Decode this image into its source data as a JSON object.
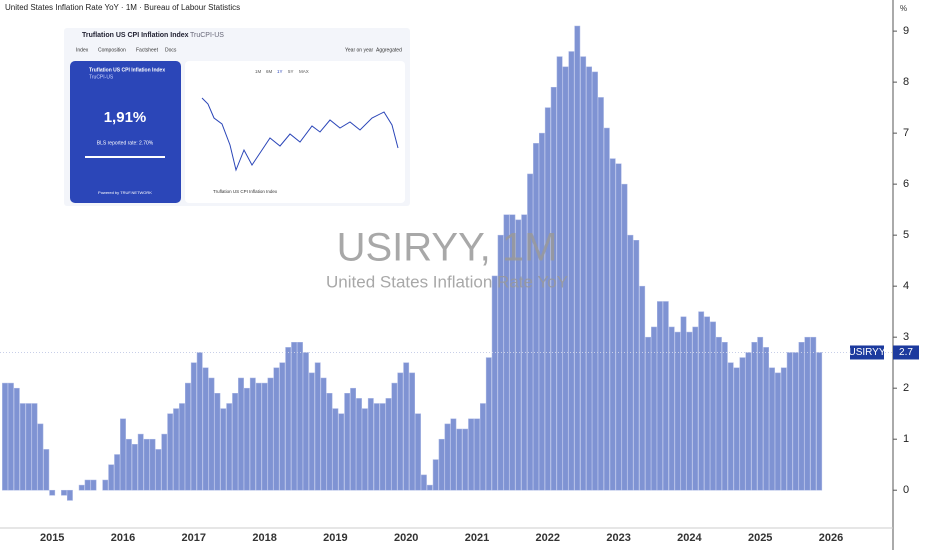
{
  "chart_data": {
    "type": "bar",
    "title": "United States Inflation Rate YoY · 1M · Bureau of Labour Statistics",
    "watermark": "USIRYY, 1M",
    "subtitle": "United States Inflation Rate YoY",
    "unit": "%",
    "color": "#7f93d3",
    "categories": [
      null,
      null,
      null,
      null,
      null,
      null,
      null,
      null,
      "2015",
      null,
      null,
      null,
      null,
      null,
      null,
      null,
      null,
      null,
      null,
      null,
      "2016",
      null,
      null,
      null,
      null,
      null,
      null,
      null,
      null,
      null,
      null,
      null,
      "2017",
      null,
      null,
      null,
      null,
      null,
      null,
      null,
      null,
      null,
      null,
      null,
      "2018",
      null,
      null,
      null,
      null,
      null,
      null,
      null,
      null,
      null,
      null,
      null,
      "2019",
      null,
      null,
      null,
      null,
      null,
      null,
      null,
      null,
      null,
      null,
      null,
      "2020",
      null,
      null,
      null,
      null,
      null,
      null,
      null,
      null,
      null,
      null,
      null,
      "2021",
      null,
      null,
      null,
      null,
      null,
      null,
      null,
      null,
      null,
      null,
      null,
      "2022",
      null,
      null,
      null,
      null,
      null,
      null,
      null,
      null,
      null,
      null,
      null,
      "2023",
      null,
      null,
      null,
      null,
      null,
      null,
      null,
      null,
      null,
      null,
      null,
      "2024",
      null,
      null,
      null,
      null,
      null,
      null,
      null,
      null,
      null,
      null,
      null,
      "2025",
      null,
      null,
      null,
      null,
      null,
      null,
      null,
      null,
      null,
      null,
      null,
      "2026"
    ],
    "values": [
      2.1,
      2.1,
      2.0,
      1.7,
      1.7,
      1.7,
      1.3,
      0.8,
      -0.1,
      0.0,
      -0.1,
      -0.2,
      0.0,
      0.1,
      0.2,
      0.2,
      0.0,
      0.2,
      0.5,
      0.7,
      1.4,
      1.0,
      0.9,
      1.1,
      1.0,
      1.0,
      0.8,
      1.1,
      1.5,
      1.6,
      1.7,
      2.1,
      2.5,
      2.7,
      2.4,
      2.2,
      1.9,
      1.6,
      1.7,
      1.9,
      2.2,
      2.0,
      2.2,
      2.1,
      2.1,
      2.2,
      2.4,
      2.5,
      2.8,
      2.9,
      2.9,
      2.7,
      2.3,
      2.5,
      2.2,
      1.9,
      1.6,
      1.5,
      1.9,
      2.0,
      1.8,
      1.6,
      1.8,
      1.7,
      1.7,
      1.8,
      2.1,
      2.3,
      2.5,
      2.3,
      1.5,
      0.3,
      0.1,
      0.6,
      1.0,
      1.3,
      1.4,
      1.2,
      1.2,
      1.4,
      1.4,
      1.7,
      2.6,
      4.2,
      5.0,
      5.4,
      5.4,
      5.3,
      5.4,
      6.2,
      6.8,
      7.0,
      7.5,
      7.9,
      8.5,
      8.3,
      8.6,
      9.1,
      8.5,
      8.3,
      8.2,
      7.7,
      7.1,
      6.5,
      6.4,
      6.0,
      5.0,
      4.9,
      4.0,
      3.0,
      3.2,
      3.7,
      3.7,
      3.2,
      3.1,
      3.4,
      3.1,
      3.2,
      3.5,
      3.4,
      3.3,
      3.0,
      2.9,
      2.5,
      2.4,
      2.6,
      2.7,
      2.9,
      3.0,
      2.8,
      2.4,
      2.3,
      2.4,
      2.7,
      2.7,
      2.9,
      3.0,
      3.0,
      2.7,
      null,
      null
    ],
    "ylim": [
      -0.78,
      9.61
    ],
    "yticks": [
      0,
      1,
      2,
      3,
      4,
      5,
      6,
      7,
      8,
      9
    ],
    "last_label": {
      "symbol": "USIRYY",
      "value": 2.7
    }
  },
  "inset": {
    "title": "Truflation US CPI Inflation Index",
    "ticker": "TruCPI-US",
    "tabs": [
      "Index",
      "Composition",
      "Factsheet",
      "Docs"
    ],
    "modes": [
      "Year on year",
      "Aggregated"
    ],
    "card_title": "Truflation US CPI Inflation Index",
    "card_ticker": "TruCPI-US",
    "card_value": "1,91%",
    "bls": "BLS reported rate: 2.70%",
    "ranges": [
      "1M",
      "6M",
      "1Y",
      "5Y",
      "MAX"
    ],
    "legend": "Truflation US CPI Inflation Index",
    "powered": "Powered by TRUF.NETWORK"
  }
}
